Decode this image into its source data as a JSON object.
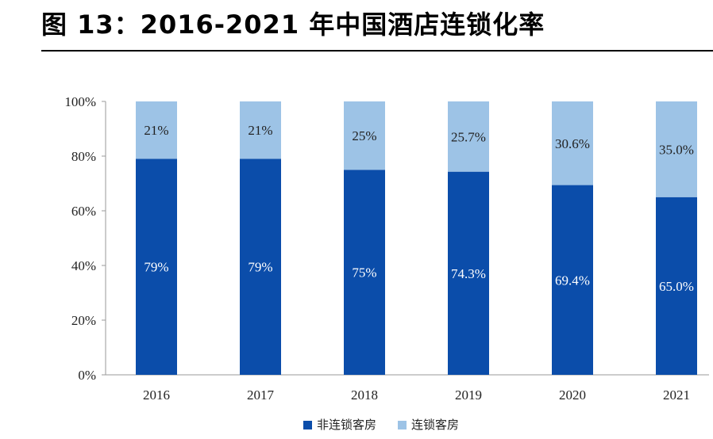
{
  "title": "图 13：2016-2021 年中国酒店连锁化率",
  "colors": {
    "non_chain": "#0B4DAA",
    "chain": "#9DC3E6",
    "axis": "#9a9a9a"
  },
  "chart_data": {
    "type": "bar",
    "stacked": true,
    "categories": [
      "2016",
      "2017",
      "2018",
      "2019",
      "2020",
      "2021"
    ],
    "series": [
      {
        "name": "非连锁客房",
        "values": [
          79,
          79,
          75,
          74.3,
          69.4,
          65.0
        ],
        "labels": [
          "79%",
          "79%",
          "75%",
          "74.3%",
          "69.4%",
          "65.0%"
        ]
      },
      {
        "name": "连锁客房",
        "values": [
          21,
          21,
          25,
          25.7,
          30.6,
          35.0
        ],
        "labels": [
          "21%",
          "21%",
          "25%",
          "25.7%",
          "30.6%",
          "35.0%"
        ]
      }
    ],
    "ylim": [
      0,
      100
    ],
    "yticks": [
      "0%",
      "20%",
      "40%",
      "60%",
      "80%",
      "100%"
    ],
    "grid": false,
    "legend": "bottom-center"
  }
}
